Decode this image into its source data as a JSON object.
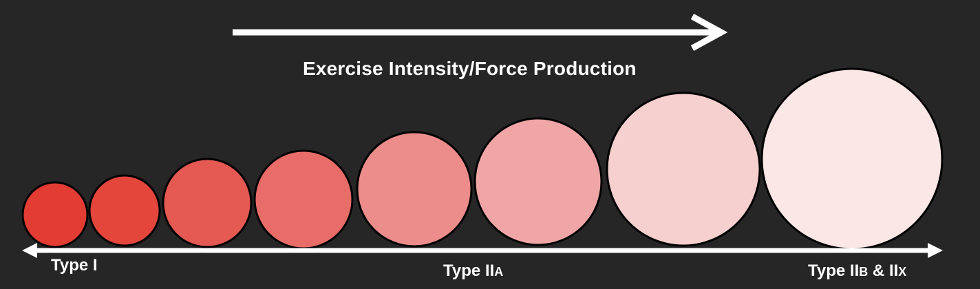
{
  "title": "Exercise Intensity/Force Production",
  "labels": {
    "type_1": "Type I",
    "type_2a_main": "Type II",
    "type_2a_sub": "A",
    "type_2bx_main": "Type II",
    "type_2bx_sub1": "B",
    "type_2bx_mid": " & II",
    "type_2bx_sub2": "X"
  },
  "colors": {
    "background": "#262626",
    "arrow": "#ffffff",
    "outline": "#000000"
  },
  "circles": [
    {
      "name": "fiber-circle-1",
      "fill": "#e23c33"
    },
    {
      "name": "fiber-circle-2",
      "fill": "#e4463c"
    },
    {
      "name": "fiber-circle-3",
      "fill": "#e45952"
    },
    {
      "name": "fiber-circle-4",
      "fill": "#e86c68"
    },
    {
      "name": "fiber-circle-5",
      "fill": "#ec8d8b"
    },
    {
      "name": "fiber-circle-6",
      "fill": "#f0a6a6"
    },
    {
      "name": "fiber-circle-7",
      "fill": "#f6cfcf"
    },
    {
      "name": "fiber-circle-8",
      "fill": "#fbe7e6"
    }
  ]
}
